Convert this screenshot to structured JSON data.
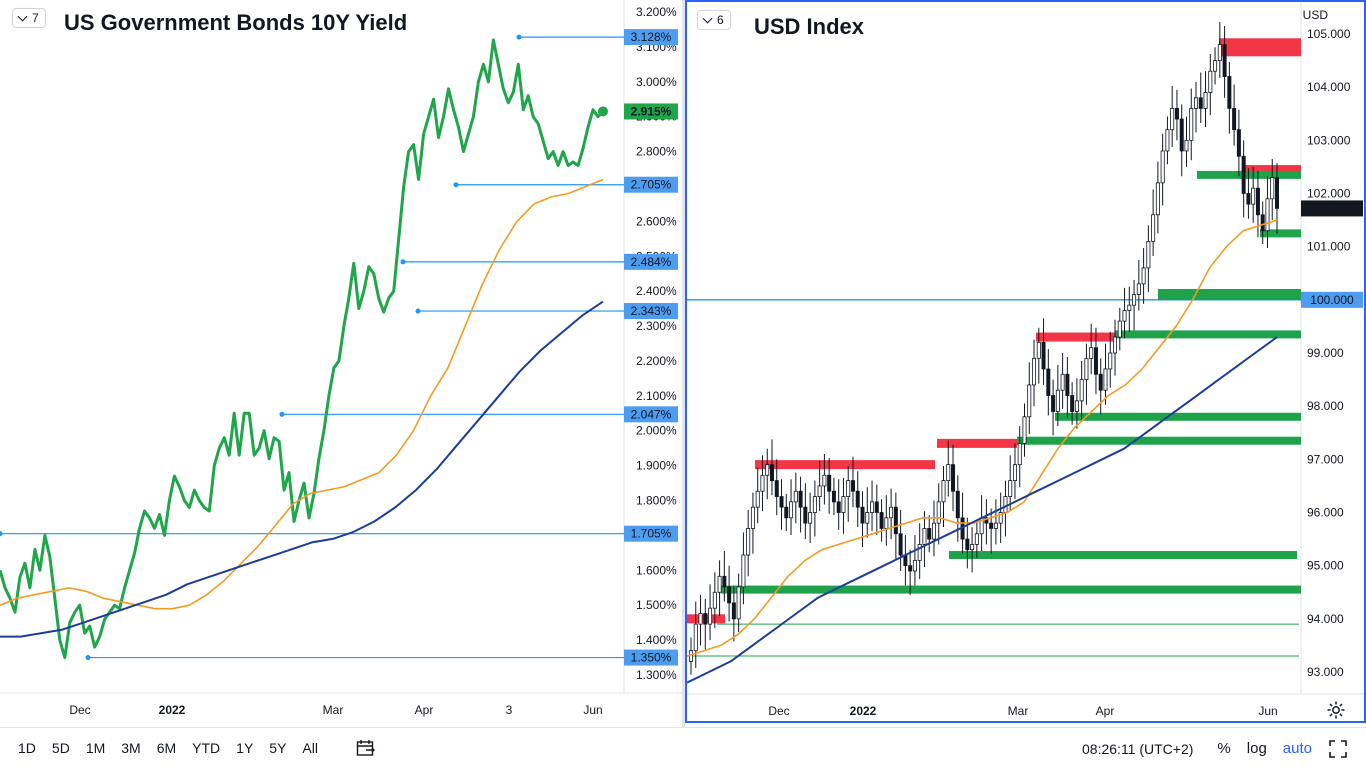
{
  "left_pane": {
    "badge": "7",
    "title": "US Government Bonds 10Y Yield",
    "price_ticks": [
      "3.200%",
      "3.100%",
      "3.000%",
      "2.900%",
      "2.800%",
      "2.700%",
      "2.600%",
      "2.500%",
      "2.400%",
      "2.300%",
      "2.200%",
      "2.100%",
      "2.000%",
      "1.900%",
      "1.800%",
      "1.700%",
      "1.600%",
      "1.500%",
      "1.400%",
      "1.300%"
    ],
    "level_labels": [
      "3.128%",
      "2.705%",
      "2.484%",
      "2.343%",
      "2.047%",
      "1.705%",
      "1.350%"
    ],
    "last_value": "2.915%",
    "time_labels": [
      "Dec",
      "2022",
      "Mar",
      "Apr",
      "3",
      "Jun"
    ]
  },
  "right_pane": {
    "badge": "6",
    "title": "USD Index",
    "currency": "USD",
    "price_ticks": [
      "105.000",
      "104.000",
      "103.000",
      "102.000",
      "101.000",
      "100.000",
      "99.000",
      "98.000",
      "97.000",
      "96.000",
      "95.000",
      "94.000",
      "93.000"
    ],
    "level_label": "100.000",
    "last_value": "101.719",
    "time_labels": [
      "Dec",
      "2022",
      "Mar",
      "Apr",
      "Jun"
    ]
  },
  "bottom_bar": {
    "ranges": [
      "1D",
      "5D",
      "1M",
      "3M",
      "6M",
      "YTD",
      "1Y",
      "5Y",
      "All"
    ],
    "clock": "08:26:11 (UTC+2)",
    "percent": "%",
    "log": "log",
    "auto": "auto"
  },
  "colors": {
    "price_line": "#1fa64a",
    "ma_fast": "#f59a23",
    "ma_slow": "#1a3d9c",
    "level_line": "#2196f3",
    "label_bg": "#4c9cf0",
    "resistance": "#f23645",
    "support": "#1ea34a",
    "last_green": "#1fa64a",
    "last_black": "#131722"
  },
  "chart_data": [
    {
      "type": "line",
      "title": "US Government Bonds 10Y Yield",
      "x_labels": [
        "Dec",
        "2022",
        "Mar",
        "Apr",
        "3",
        "Jun"
      ],
      "ylim": [
        1.27,
        3.25
      ],
      "unit": "%",
      "series": [
        {
          "values": [
            1.6,
            1.55,
            1.52,
            1.48,
            1.58,
            1.62,
            1.55,
            1.66,
            1.6,
            1.7,
            1.64,
            1.52,
            1.4,
            1.35,
            1.45,
            1.48,
            1.5,
            1.42,
            1.44,
            1.38,
            1.41,
            1.46,
            1.48,
            1.5,
            1.49,
            1.55,
            1.6,
            1.65,
            1.72,
            1.77,
            1.75,
            1.72,
            1.76,
            1.7,
            1.8,
            1.87,
            1.84,
            1.8,
            1.78,
            1.83,
            1.8,
            1.78,
            1.77,
            1.9,
            1.95,
            1.98,
            1.93,
            2.05,
            1.93,
            2.05,
            2.05,
            1.93,
            1.95,
            2.0,
            1.92,
            1.98,
            1.97,
            1.83,
            1.88,
            1.74,
            1.8,
            1.85,
            1.75,
            1.82,
            1.92,
            2.0,
            2.1,
            2.18,
            2.2,
            2.3,
            2.38,
            2.48,
            2.35,
            2.4,
            2.47,
            2.45,
            2.38,
            2.34,
            2.38,
            2.4,
            2.55,
            2.7,
            2.8,
            2.82,
            2.72,
            2.85,
            2.9,
            2.95,
            2.84,
            2.9,
            2.98,
            2.92,
            2.87,
            2.8,
            2.85,
            2.9,
            3.0,
            3.05,
            3.0,
            3.12,
            3.05,
            2.98,
            2.94,
            2.97,
            3.05,
            2.92,
            2.96,
            2.9,
            2.88,
            2.83,
            2.78,
            2.8,
            2.76,
            2.8,
            2.76,
            2.77,
            2.76,
            2.81,
            2.87,
            2.92,
            2.9,
            2.915
          ]
        },
        {
          "values": [
            1.5,
            1.52,
            1.53,
            1.54,
            1.55,
            1.54,
            1.52,
            1.51,
            1.5,
            1.49,
            1.49,
            1.5,
            1.53,
            1.57,
            1.62,
            1.67,
            1.73,
            1.79,
            1.82,
            1.83,
            1.84,
            1.86,
            1.88,
            1.93,
            2.0,
            2.1,
            2.18,
            2.3,
            2.42,
            2.52,
            2.6,
            2.65,
            2.67,
            2.68,
            2.7,
            2.72
          ]
        },
        {
          "values": [
            1.41,
            1.41,
            1.42,
            1.43,
            1.45,
            1.47,
            1.49,
            1.51,
            1.53,
            1.56,
            1.58,
            1.6,
            1.62,
            1.64,
            1.66,
            1.68,
            1.69,
            1.71,
            1.74,
            1.78,
            1.83,
            1.89,
            1.96,
            2.03,
            2.1,
            2.17,
            2.23,
            2.28,
            2.33,
            2.37
          ]
        }
      ],
      "levels": [
        3.128,
        2.705,
        2.484,
        2.343,
        2.047,
        1.705,
        1.35
      ],
      "last": 2.915
    },
    {
      "type": "candlestick",
      "title": "USD Index",
      "x_labels": [
        "Dec",
        "2022",
        "Mar",
        "Apr",
        "Jun"
      ],
      "ylim": [
        92.5,
        105.35
      ],
      "close": [
        93.4,
        93.9,
        94.1,
        93.9,
        94.2,
        94.5,
        94.8,
        94.6,
        94.3,
        94.0,
        94.6,
        95.2,
        95.7,
        96.1,
        96.4,
        96.7,
        96.9,
        96.6,
        96.3,
        96.1,
        95.9,
        96.2,
        96.4,
        96.1,
        95.8,
        96.0,
        96.3,
        96.5,
        96.7,
        96.4,
        96.2,
        96.0,
        96.3,
        96.6,
        96.4,
        96.1,
        95.8,
        96.0,
        96.2,
        96.0,
        95.7,
        95.9,
        96.1,
        95.6,
        95.2,
        95.0,
        94.9,
        95.1,
        95.4,
        95.7,
        95.5,
        95.8,
        96.2,
        96.6,
        96.9,
        96.4,
        95.9,
        95.5,
        95.3,
        95.4,
        95.6,
        95.9,
        95.8,
        95.7,
        95.8,
        96.0,
        96.3,
        96.6,
        96.9,
        97.3,
        97.8,
        98.4,
        98.9,
        99.2,
        98.7,
        98.2,
        97.9,
        98.3,
        98.6,
        98.2,
        97.9,
        98.1,
        98.5,
        98.9,
        99.1,
        98.6,
        98.3,
        98.7,
        99.0,
        99.3,
        99.6,
        99.8,
        99.9,
        100.1,
        100.3,
        100.6,
        101.1,
        101.6,
        102.2,
        102.8,
        103.2,
        103.6,
        103.4,
        102.8,
        103.0,
        103.6,
        103.8,
        103.6,
        103.9,
        104.3,
        104.5,
        104.8,
        104.2,
        103.6,
        103.2,
        102.7,
        102.0,
        101.8,
        102.1,
        101.6,
        101.3,
        101.9,
        102.3,
        101.72
      ]
    },
    {
      "type": "line",
      "title": "USD Index moving averages",
      "series": [
        {
          "values": [
            93.3,
            93.4,
            93.5,
            93.7,
            94.0,
            94.4,
            94.8,
            95.1,
            95.3,
            95.4,
            95.5,
            95.6,
            95.7,
            95.8,
            95.9,
            95.9,
            95.8,
            95.8,
            95.9,
            96.0,
            96.2,
            96.7,
            97.2,
            97.6,
            97.9,
            98.2,
            98.4,
            98.7,
            99.1,
            99.5,
            100.0,
            100.6,
            101.0,
            101.3,
            101.4,
            101.5
          ]
        },
        {
          "values": [
            92.8,
            93.0,
            93.2,
            93.5,
            93.8,
            94.1,
            94.4,
            94.6,
            94.8,
            95.0,
            95.2,
            95.4,
            95.6,
            95.8,
            96.0,
            96.2,
            96.4,
            96.6,
            96.8,
            97.0,
            97.2,
            97.5,
            97.8,
            98.1,
            98.4,
            98.7,
            99.0,
            99.3
          ]
        }
      ],
      "resistance_zones": [
        94.0,
        96.9,
        97.3,
        99.3,
        104.75,
        102.45
      ],
      "support_zones": [
        101.25,
        102.35,
        100.1,
        99.35,
        97.8,
        97.35,
        95.2,
        94.55
      ],
      "horizontal_lines": [
        100.0,
        93.9,
        93.3
      ],
      "last": 101.719
    }
  ]
}
